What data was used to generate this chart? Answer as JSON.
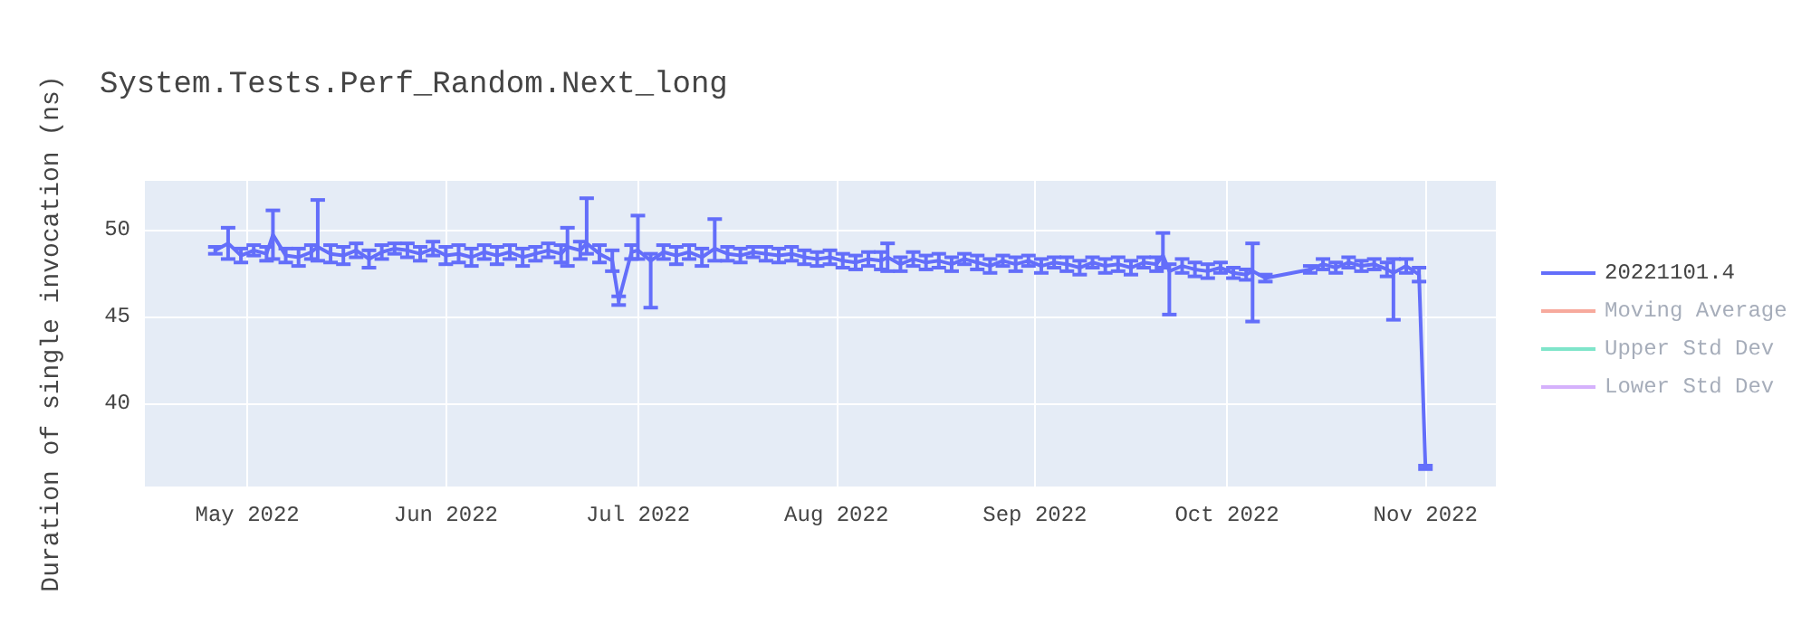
{
  "chart_data": {
    "type": "line",
    "title": "System.Tests.Perf_Random.Next_long",
    "ylabel": "Duration of single invocation (ns)",
    "x": [
      "2022-04-26",
      "2022-04-28",
      "2022-04-30",
      "2022-05-02",
      "2022-05-04",
      "2022-05-05",
      "2022-05-07",
      "2022-05-09",
      "2022-05-11",
      "2022-05-12",
      "2022-05-14",
      "2022-05-16",
      "2022-05-18",
      "2022-05-20",
      "2022-05-22",
      "2022-05-24",
      "2022-05-26",
      "2022-05-28",
      "2022-05-30",
      "2022-06-01",
      "2022-06-03",
      "2022-06-05",
      "2022-06-07",
      "2022-06-09",
      "2022-06-11",
      "2022-06-13",
      "2022-06-15",
      "2022-06-17",
      "2022-06-19",
      "2022-06-20",
      "2022-06-22",
      "2022-06-23",
      "2022-06-25",
      "2022-06-27",
      "2022-06-28",
      "2022-06-30",
      "2022-07-01",
      "2022-07-03",
      "2022-07-05",
      "2022-07-07",
      "2022-07-09",
      "2022-07-11",
      "2022-07-13",
      "2022-07-15",
      "2022-07-17",
      "2022-07-19",
      "2022-07-21",
      "2022-07-23",
      "2022-07-25",
      "2022-07-27",
      "2022-07-29",
      "2022-07-31",
      "2022-08-02",
      "2022-08-04",
      "2022-08-06",
      "2022-08-08",
      "2022-08-09",
      "2022-08-11",
      "2022-08-13",
      "2022-08-15",
      "2022-08-17",
      "2022-08-19",
      "2022-08-21",
      "2022-08-23",
      "2022-08-25",
      "2022-08-27",
      "2022-08-29",
      "2022-08-31",
      "2022-09-02",
      "2022-09-04",
      "2022-09-06",
      "2022-09-08",
      "2022-09-10",
      "2022-09-12",
      "2022-09-14",
      "2022-09-16",
      "2022-09-18",
      "2022-09-20",
      "2022-09-21",
      "2022-09-22",
      "2022-09-24",
      "2022-09-26",
      "2022-09-28",
      "2022-09-30",
      "2022-10-02",
      "2022-10-04",
      "2022-10-05",
      "2022-10-07",
      "2022-10-14",
      "2022-10-16",
      "2022-10-18",
      "2022-10-20",
      "2022-10-22",
      "2022-10-24",
      "2022-10-26",
      "2022-10-27",
      "2022-10-29",
      "2022-10-31",
      "2022-11-01"
    ],
    "series": [
      {
        "name": "20221101.4",
        "color": "#636efa",
        "values": [
          48.8,
          49.2,
          48.5,
          48.8,
          48.6,
          49.7,
          48.5,
          48.4,
          48.7,
          49.0,
          48.6,
          48.5,
          48.8,
          48.3,
          48.7,
          48.9,
          48.8,
          48.6,
          48.9,
          48.5,
          48.6,
          48.4,
          48.7,
          48.5,
          48.7,
          48.4,
          48.6,
          48.8,
          48.6,
          49.0,
          48.8,
          49.2,
          48.6,
          48.2,
          45.9,
          48.7,
          48.8,
          48.2,
          48.7,
          48.5,
          48.7,
          48.4,
          48.9,
          48.6,
          48.5,
          48.7,
          48.6,
          48.5,
          48.6,
          48.4,
          48.3,
          48.4,
          48.2,
          48.1,
          48.3,
          48.2,
          48.4,
          48.0,
          48.3,
          48.1,
          48.2,
          48.0,
          48.3,
          48.1,
          47.9,
          48.2,
          48.0,
          48.2,
          47.9,
          48.1,
          48.0,
          47.8,
          48.1,
          47.9,
          48.0,
          47.8,
          48.1,
          48.0,
          48.5,
          47.6,
          47.9,
          47.7,
          47.6,
          47.8,
          47.5,
          47.4,
          47.6,
          47.2,
          47.7,
          48.0,
          47.8,
          48.1,
          47.9,
          48.0,
          47.7,
          47.5,
          47.9,
          47.4,
          36.3
        ],
        "errors": [
          0.2,
          0.9,
          0.4,
          0.3,
          0.4,
          1.4,
          0.4,
          0.5,
          0.4,
          [
            48.2,
            51.7
          ],
          0.5,
          0.5,
          0.4,
          0.5,
          0.4,
          0.3,
          0.4,
          0.4,
          0.4,
          0.5,
          0.5,
          0.5,
          0.4,
          0.5,
          0.4,
          0.5,
          0.4,
          0.4,
          0.5,
          1.1,
          0.5,
          [
            48.6,
            51.8
          ],
          0.5,
          0.6,
          0.25,
          0.4,
          [
            48.3,
            50.8
          ],
          [
            45.5,
            48.6
          ],
          0.4,
          0.5,
          0.4,
          0.5,
          [
            48.2,
            50.6
          ],
          0.4,
          0.4,
          0.3,
          0.4,
          0.4,
          0.4,
          0.4,
          0.4,
          0.4,
          0.4,
          0.4,
          0.4,
          0.5,
          0.8,
          0.4,
          0.4,
          0.4,
          0.4,
          0.4,
          0.3,
          0.4,
          0.4,
          0.3,
          0.4,
          0.3,
          0.4,
          0.3,
          0.4,
          0.4,
          0.3,
          0.4,
          0.4,
          0.4,
          0.3,
          0.4,
          [
            47.8,
            49.8
          ],
          [
            45.1,
            48.0
          ],
          0.4,
          0.4,
          0.4,
          0.3,
          0.3,
          0.3,
          [
            44.7,
            49.2
          ],
          0.2,
          0.2,
          0.3,
          0.3,
          0.3,
          0.3,
          0.3,
          0.4,
          [
            44.8,
            48.3
          ],
          0.4,
          0.4,
          0.1
        ]
      },
      {
        "name": "Moving Average",
        "color": "#ef553b",
        "values": [
          null,
          null,
          null,
          null,
          null,
          null,
          null,
          null,
          null,
          null,
          null,
          null,
          null,
          null,
          null,
          null,
          null,
          null,
          null,
          null,
          null,
          null,
          null,
          null,
          null,
          null,
          null,
          null,
          null,
          null,
          null,
          null,
          null,
          null,
          null,
          null,
          null,
          null,
          null,
          null,
          null,
          null,
          null,
          null,
          null,
          null,
          null,
          null,
          null,
          null,
          null,
          null,
          null,
          null,
          null,
          null,
          null,
          null,
          null,
          null,
          null,
          null,
          null,
          null,
          null,
          null,
          null,
          null,
          null,
          null,
          null,
          null,
          null,
          null,
          null,
          null,
          null,
          null,
          null,
          null,
          null,
          null,
          null,
          null,
          null,
          null,
          null,
          null,
          null,
          null,
          null,
          null,
          null,
          null,
          null,
          null,
          null,
          null,
          null
        ]
      },
      {
        "name": "Upper Std Dev",
        "color": "#00cc96",
        "values": [
          null,
          null,
          null,
          null,
          null,
          null,
          null,
          null,
          null,
          null,
          null,
          null,
          null,
          null,
          null,
          null,
          null,
          null,
          null,
          null,
          null,
          null,
          null,
          null,
          null,
          null,
          null,
          null,
          null,
          null,
          null,
          null,
          null,
          null,
          null,
          null,
          null,
          null,
          null,
          null,
          null,
          null,
          null,
          null,
          null,
          null,
          null,
          null,
          null,
          null,
          null,
          null,
          null,
          null,
          null,
          null,
          null,
          null,
          null,
          null,
          null,
          null,
          null,
          null,
          null,
          null,
          null,
          null,
          null,
          null,
          null,
          null,
          null,
          null,
          null,
          null,
          null,
          null,
          null,
          null,
          null,
          null,
          null,
          null,
          null,
          null,
          null,
          null,
          null,
          null,
          null,
          null,
          null,
          null,
          null,
          null,
          null,
          null,
          null
        ]
      },
      {
        "name": "Lower Std Dev",
        "color": "#ab63fa",
        "values": [
          null,
          null,
          null,
          null,
          null,
          null,
          null,
          null,
          null,
          null,
          null,
          null,
          null,
          null,
          null,
          null,
          null,
          null,
          null,
          null,
          null,
          null,
          null,
          null,
          null,
          null,
          null,
          null,
          null,
          null,
          null,
          null,
          null,
          null,
          null,
          null,
          null,
          null,
          null,
          null,
          null,
          null,
          null,
          null,
          null,
          null,
          null,
          null,
          null,
          null,
          null,
          null,
          null,
          null,
          null,
          null,
          null,
          null,
          null,
          null,
          null,
          null,
          null,
          null,
          null,
          null,
          null,
          null,
          null,
          null,
          null,
          null,
          null,
          null,
          null,
          null,
          null,
          null,
          null,
          null,
          null,
          null,
          null,
          null,
          null,
          null,
          null,
          null,
          null,
          null,
          null,
          null,
          null,
          null,
          null,
          null,
          null,
          null,
          null
        ]
      }
    ],
    "xlim": [
      "2022-04-15",
      "2022-11-12"
    ],
    "xticks": [
      {
        "value": "2022-05-01",
        "label": "May 2022"
      },
      {
        "value": "2022-06-01",
        "label": "Jun 2022"
      },
      {
        "value": "2022-07-01",
        "label": "Jul 2022"
      },
      {
        "value": "2022-08-01",
        "label": "Aug 2022"
      },
      {
        "value": "2022-09-01",
        "label": "Sep 2022"
      },
      {
        "value": "2022-10-01",
        "label": "Oct 2022"
      },
      {
        "value": "2022-11-01",
        "label": "Nov 2022"
      }
    ],
    "ylim": [
      35.2,
      52.8
    ],
    "yticks": [
      40,
      45,
      50
    ],
    "grid": true,
    "legend": "top right",
    "marker": "none",
    "line_style": "solid"
  }
}
